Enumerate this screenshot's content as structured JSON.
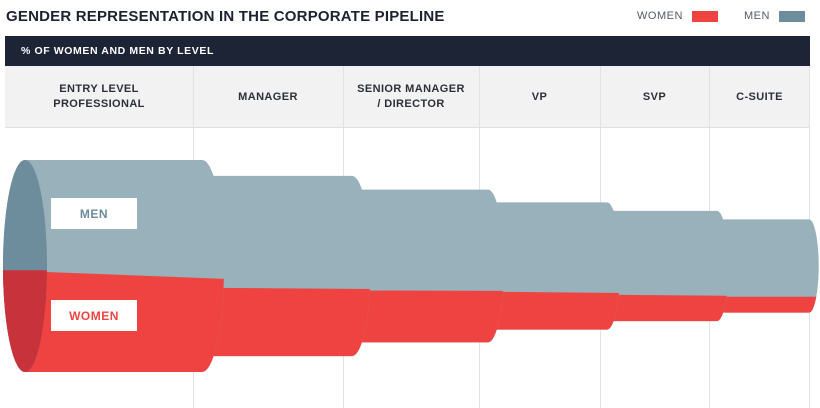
{
  "header": {
    "title": "GENDER REPRESENTATION IN THE CORPORATE PIPELINE",
    "subtitle": "% OF WOMEN AND MEN BY LEVEL"
  },
  "legend": {
    "women_label": "WOMEN",
    "men_label": "MEN"
  },
  "colors": {
    "women": "#ef4341",
    "women_dark": "#c8323a",
    "men": "#98b1ba",
    "men_dark": "#6d8c9c"
  },
  "chart_data": {
    "type": "area",
    "title": "GENDER REPRESENTATION IN THE CORPORATE PIPELINE",
    "subtitle": "% OF WOMEN AND MEN BY LEVEL",
    "categories": [
      "ENTRY LEVEL\nPROFESSIONAL",
      "MANAGER",
      "SENIOR MANAGER\n/ DIRECTOR",
      "VP",
      "SVP",
      "C-SUITE"
    ],
    "series": [
      {
        "name": "WOMEN",
        "values": [
          48,
          38,
          34,
          30,
          24,
          17
        ]
      },
      {
        "name": "MEN",
        "values": [
          52,
          62,
          66,
          70,
          76,
          83
        ]
      }
    ],
    "relative_pipeline_size": [
      1.0,
      0.85,
      0.72,
      0.6,
      0.52,
      0.44
    ],
    "legend_position": "top-right",
    "inline_labels": [
      "MEN",
      "WOMEN"
    ]
  }
}
